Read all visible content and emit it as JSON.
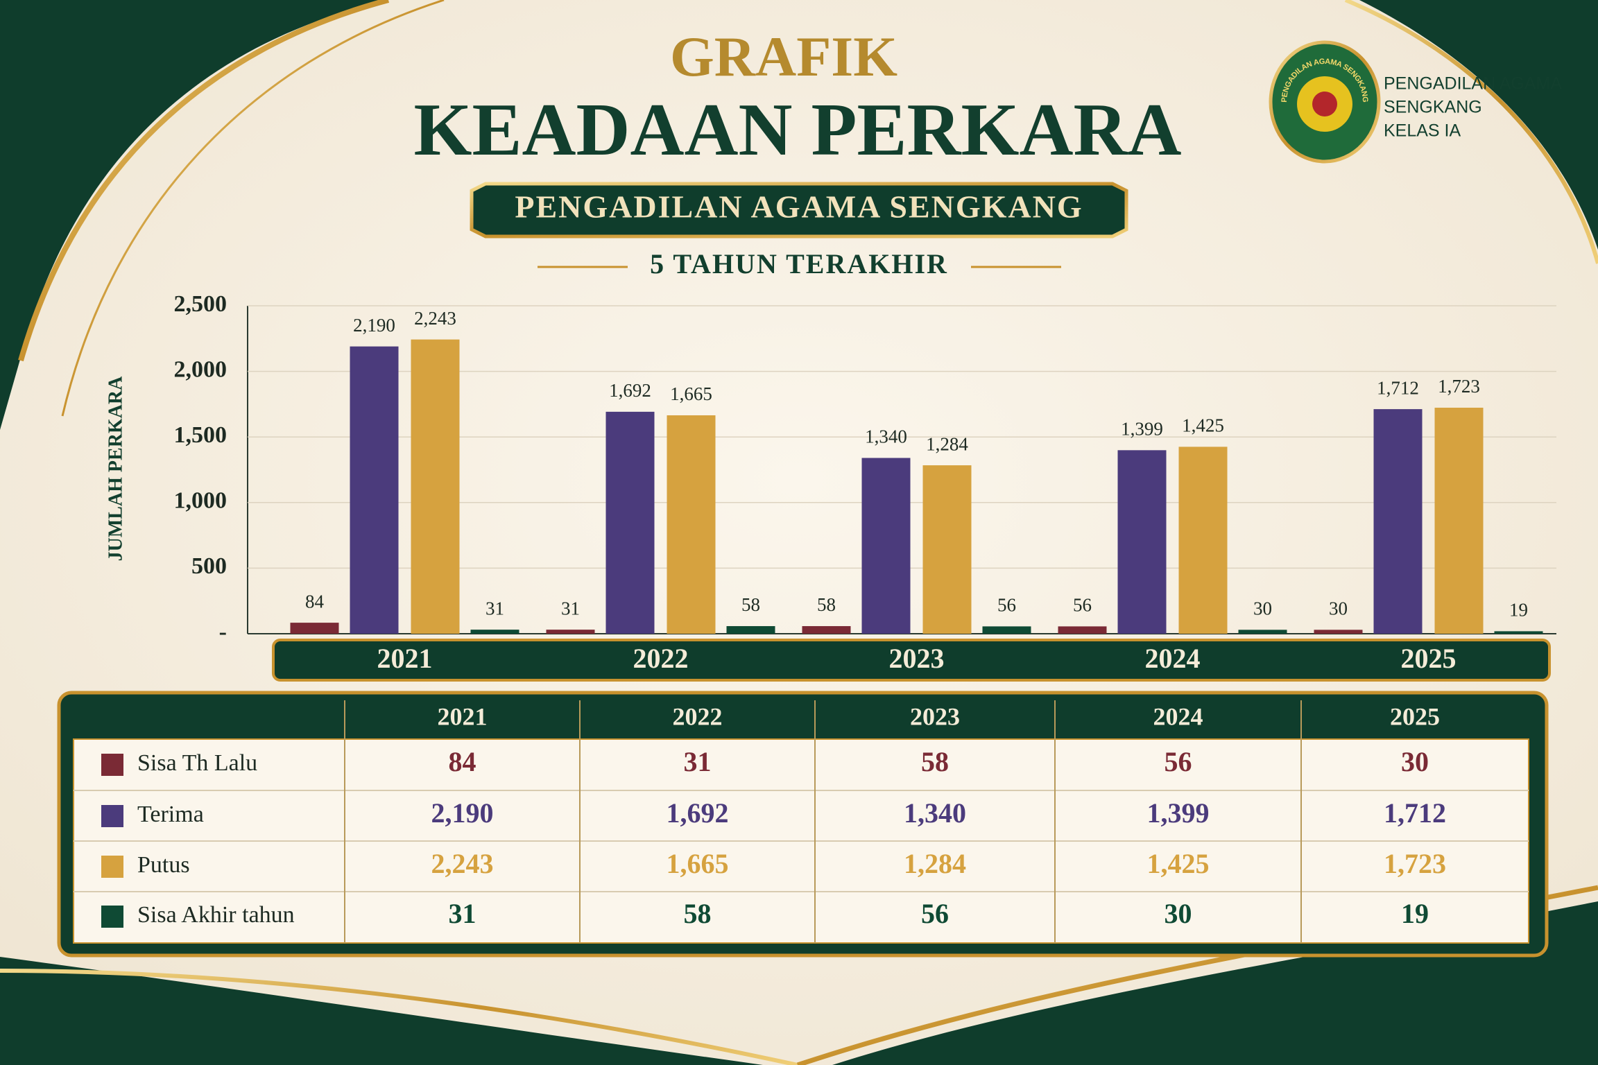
{
  "header": {
    "title_top": "GRAFIK",
    "title": "KEADAAN PERKARA",
    "subtitle": "PENGADILAN AGAMA SENGKANG",
    "period": "5 TAHUN TERAKHIR"
  },
  "logo": {
    "seal_text": "PENGADILAN AGAMA SENGKANG",
    "text_lines": [
      "PENGADILAN AGAMA",
      "SENGKANG",
      "KELAS IA"
    ]
  },
  "chart_data": {
    "type": "bar",
    "y_label": "JUMLAH PERKARA",
    "categories": [
      "2021",
      "2022",
      "2023",
      "2024",
      "2025"
    ],
    "ylim": [
      0,
      2500
    ],
    "yticks": [
      {
        "value": 0,
        "label": "-"
      },
      500,
      {
        "value": 1000,
        "label": "1,000"
      },
      {
        "value": 1500,
        "label": "1,500"
      },
      {
        "value": 2000,
        "label": "2,000"
      },
      {
        "value": 2500,
        "label": "2,500"
      }
    ],
    "grid": true,
    "series": [
      {
        "name": "Sisa Th Lalu",
        "color": "#7a2a35",
        "values": [
          84,
          31,
          58,
          56,
          30
        ],
        "value_labels": [
          "84",
          "31",
          "58",
          "56",
          "30"
        ]
      },
      {
        "name": "Terima",
        "color": "#4b3b7c",
        "values": [
          2190,
          1692,
          1340,
          1399,
          1712
        ],
        "value_labels": [
          "2,190",
          "1,692",
          "1,340",
          "1,399",
          "1,712"
        ]
      },
      {
        "name": "Putus",
        "color": "#d6a23f",
        "values": [
          2243,
          1665,
          1284,
          1425,
          1723
        ],
        "value_labels": [
          "2,243",
          "1,665",
          "1,284",
          "1,425",
          "1,723"
        ]
      },
      {
        "name": "Sisa Akhir tahun",
        "color": "#0f4a34",
        "values": [
          31,
          58,
          56,
          30,
          19
        ],
        "value_labels": [
          "31",
          "58",
          "56",
          "30",
          "19"
        ]
      }
    ]
  }
}
